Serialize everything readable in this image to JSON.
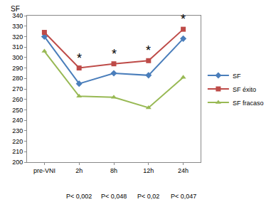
{
  "chart_data": {
    "type": "line",
    "y_label": "SF",
    "categories": [
      "pre-VNI",
      "2h",
      "8h",
      "12h",
      "24h"
    ],
    "series": [
      {
        "name": "SF",
        "color": "#4a7ebb",
        "marker": "diamond",
        "values": [
          320,
          275,
          285,
          283,
          318
        ]
      },
      {
        "name": "SF éxito",
        "color": "#be4b48",
        "marker": "square",
        "values": [
          324,
          290,
          294,
          297,
          327
        ]
      },
      {
        "name": "SF fracaso",
        "color": "#98b954",
        "marker": "triangle",
        "values": [
          306,
          263,
          262,
          252,
          281
        ]
      }
    ],
    "ylim": [
      200,
      340
    ],
    "yticks": [
      200,
      210,
      220,
      230,
      240,
      250,
      260,
      270,
      280,
      290,
      300,
      310,
      320,
      330,
      340
    ],
    "grid": false,
    "legend": "right",
    "annotations": [
      {
        "category": "2h",
        "text": "*",
        "note": "P< 0,002"
      },
      {
        "category": "8h",
        "text": "*",
        "note": "P< 0,048"
      },
      {
        "category": "12h",
        "text": "*",
        "note": "P< 0,02"
      },
      {
        "category": "24h",
        "text": "*",
        "note": "P< 0,047"
      }
    ]
  }
}
